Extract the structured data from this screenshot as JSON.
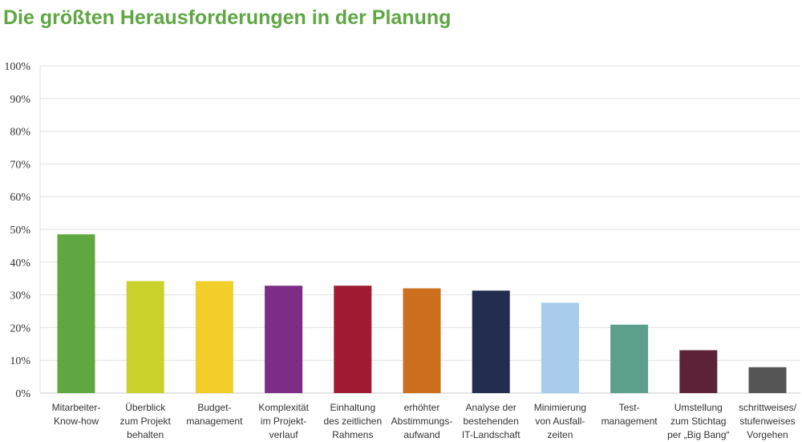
{
  "chart_data": {
    "type": "bar",
    "title": "Die größten Herausforderungen in der Planung",
    "xlabel": "",
    "ylabel": "",
    "ylim": [
      0,
      100
    ],
    "yticks": [
      "0%",
      "10%",
      "20%",
      "30%",
      "40%",
      "50%",
      "60%",
      "70%",
      "80%",
      "90%",
      "100%"
    ],
    "grid": true,
    "categories": [
      [
        "Mitarbeiter-",
        "Know-how"
      ],
      [
        "Überblick",
        "zum Projekt",
        "behalten"
      ],
      [
        "Budget-",
        "management"
      ],
      [
        "Komplexität",
        "im Projekt-",
        "verlauf"
      ],
      [
        "Einhaltung",
        "des zeitlichen",
        "Rahmens"
      ],
      [
        "erhöhter",
        "Abstimmungs-",
        "aufwand"
      ],
      [
        "Analyse der",
        "bestehenden",
        "IT-Landschaft"
      ],
      [
        "Minimierung",
        "von Ausfall-",
        "zeiten"
      ],
      [
        "Test-",
        "management"
      ],
      [
        "Umstellung",
        "zum Stichtag",
        "per „Big Bang“"
      ],
      [
        "schrittweises/",
        "stufenweises",
        "Vorgehen"
      ]
    ],
    "values": [
      48.5,
      34.2,
      34.2,
      32.8,
      32.8,
      32.0,
      31.3,
      27.6,
      20.9,
      13.1,
      7.9
    ],
    "colors": [
      "#5fa83f",
      "#c9d12a",
      "#f1ce2a",
      "#7e2d86",
      "#a01a32",
      "#cc6f1e",
      "#222d4f",
      "#a9cbec",
      "#5c9f8c",
      "#5e2238",
      "#555555"
    ]
  }
}
